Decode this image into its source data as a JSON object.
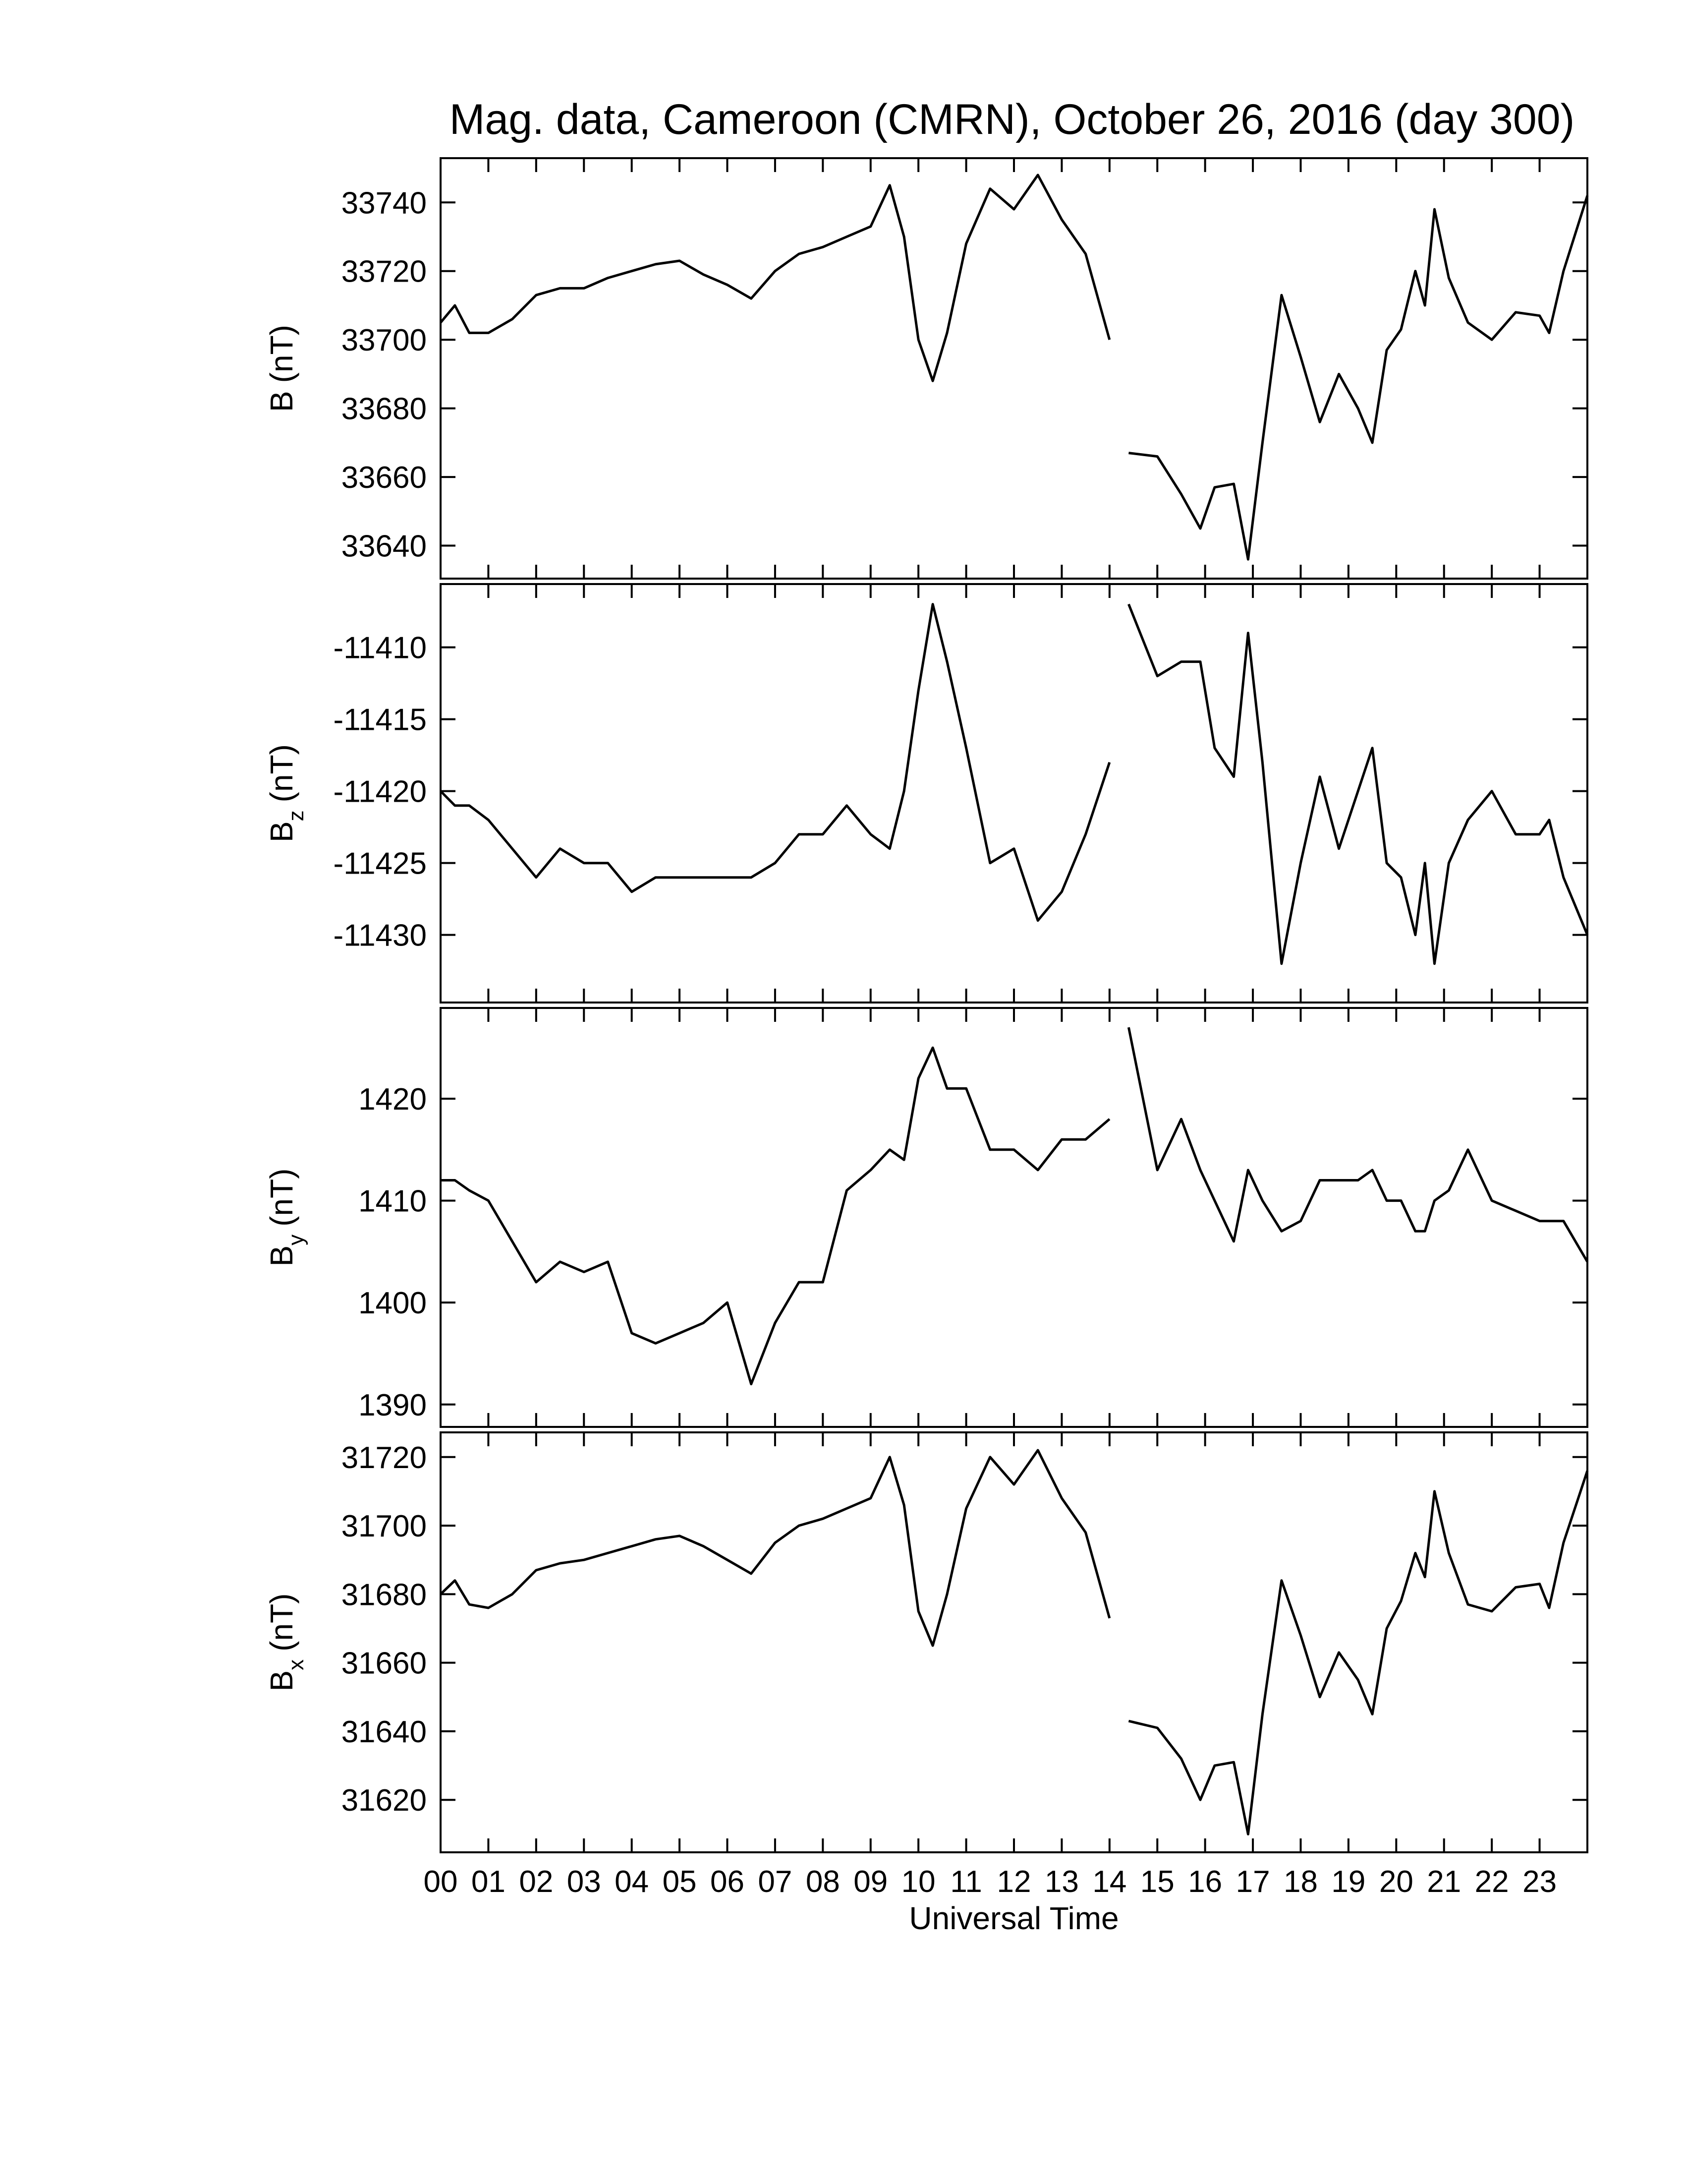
{
  "chart_data": [
    {
      "type": "line",
      "title": "Mag. data, Cameroon (CMRN), October 26, 2016 (day 300)",
      "ylabel": {
        "base": "B",
        "unit": "(nT)"
      },
      "color": "#000000",
      "xlim": [
        0,
        24
      ],
      "ylim": [
        33630.4,
        33752.9
      ],
      "yticks": [
        33640,
        33660,
        33680,
        33700,
        33720,
        33740
      ],
      "x": [
        0,
        0.3,
        0.6,
        1,
        1.5,
        2,
        2.5,
        3,
        3.5,
        4,
        4.5,
        5,
        5.5,
        6,
        6.5,
        7,
        7.5,
        8,
        8.5,
        9,
        9.4,
        9.7,
        10,
        10.3,
        10.6,
        11,
        11.5,
        12,
        12.5,
        13,
        13.5,
        14,
        14.2,
        14.4,
        15,
        15.5,
        15.9,
        16.2,
        16.6,
        16.9,
        17.2,
        17.6,
        18,
        18.4,
        18.8,
        19.2,
        19.5,
        19.8,
        20.1,
        20.4,
        20.6,
        20.8,
        21.1,
        21.5,
        22,
        22.5,
        23,
        23.2,
        23.5,
        24
      ],
      "values": [
        33705,
        33710,
        33702,
        33702,
        33706,
        33713,
        33715,
        33715,
        33718,
        33720,
        33722,
        33723,
        33719,
        33716,
        33712,
        33720,
        33725,
        33727,
        33730,
        33733,
        33745,
        33730,
        33700,
        33688,
        33702,
        33728,
        33744,
        33738,
        33748,
        33735,
        33725,
        33700,
        null,
        33667,
        33666,
        33655,
        33645,
        33657,
        33658,
        33636,
        33670,
        33713,
        33695,
        33676,
        33690,
        33680,
        33670,
        33697,
        33703,
        33720,
        33710,
        33738,
        33718,
        33705,
        33700,
        33708,
        33707,
        33702,
        33720,
        33742
      ]
    },
    {
      "type": "line",
      "ylabel": {
        "base": "B",
        "sub": "z",
        "unit": "(nT)"
      },
      "color": "#000000",
      "xlim": [
        0,
        24
      ],
      "ylim": [
        -11434.7,
        -11405.6
      ],
      "yticks": [
        -11430,
        -11425,
        -11420,
        -11415,
        -11410
      ],
      "x": [
        0,
        0.3,
        0.6,
        1,
        1.5,
        2,
        2.5,
        3,
        3.5,
        4,
        4.5,
        5,
        5.5,
        6,
        6.5,
        7,
        7.5,
        8,
        8.5,
        9,
        9.4,
        9.7,
        10,
        10.3,
        10.6,
        11,
        11.5,
        12,
        12.5,
        13,
        13.5,
        14,
        14.2,
        14.4,
        15,
        15.5,
        15.9,
        16.2,
        16.6,
        16.9,
        17.2,
        17.6,
        18,
        18.4,
        18.8,
        19.2,
        19.5,
        19.8,
        20.1,
        20.4,
        20.6,
        20.8,
        21.1,
        21.5,
        22,
        22.5,
        23,
        23.2,
        23.5,
        24
      ],
      "values": [
        -11420,
        -11421,
        -11421,
        -11422,
        -11424,
        -11426,
        -11424,
        -11425,
        -11425,
        -11427,
        -11426,
        -11426,
        -11426,
        -11426,
        -11426,
        -11425,
        -11423,
        -11423,
        -11421,
        -11423,
        -11424,
        -11420,
        -11413,
        -11407,
        -11411,
        -11417,
        -11425,
        -11424,
        -11429,
        -11427,
        -11423,
        -11418,
        null,
        -11407,
        -11412,
        -11411,
        -11411,
        -11417,
        -11419,
        -11409,
        -11418,
        -11432,
        -11425,
        -11419,
        -11424,
        -11420,
        -11417,
        -11425,
        -11426,
        -11430,
        -11425,
        -11432,
        -11425,
        -11422,
        -11420,
        -11423,
        -11423,
        -11422,
        -11426,
        -11430
      ]
    },
    {
      "type": "line",
      "ylabel": {
        "base": "B",
        "sub": "y",
        "unit": "(nT)"
      },
      "color": "#000000",
      "xlim": [
        0,
        24
      ],
      "ylim": [
        1387.8,
        1428.9
      ],
      "yticks": [
        1390,
        1400,
        1410,
        1420
      ],
      "x": [
        0,
        0.3,
        0.6,
        1,
        1.5,
        2,
        2.5,
        3,
        3.5,
        4,
        4.5,
        5,
        5.5,
        6,
        6.5,
        7,
        7.5,
        8,
        8.5,
        9,
        9.4,
        9.7,
        10,
        10.3,
        10.6,
        11,
        11.5,
        12,
        12.5,
        13,
        13.5,
        14,
        14.2,
        14.4,
        15,
        15.5,
        15.9,
        16.2,
        16.6,
        16.9,
        17.2,
        17.6,
        18,
        18.4,
        18.8,
        19.2,
        19.5,
        19.8,
        20.1,
        20.4,
        20.6,
        20.8,
        21.1,
        21.5,
        22,
        22.5,
        23,
        23.2,
        23.5,
        24
      ],
      "values": [
        1412,
        1412,
        1411,
        1410,
        1406,
        1402,
        1404,
        1403,
        1404,
        1397,
        1396,
        1397,
        1398,
        1400,
        1392,
        1398,
        1402,
        1402,
        1411,
        1413,
        1415,
        1414,
        1422,
        1425,
        1421,
        1421,
        1415,
        1415,
        1413,
        1416,
        1416,
        1418,
        null,
        1427,
        1413,
        1418,
        1413,
        1410,
        1406,
        1413,
        1410,
        1407,
        1408,
        1412,
        1412,
        1412,
        1413,
        1410,
        1410,
        1407,
        1407,
        1410,
        1411,
        1415,
        1410,
        1409,
        1408,
        1408,
        1408,
        1404
      ]
    },
    {
      "type": "line",
      "ylabel": {
        "base": "B",
        "sub": "x",
        "unit": "(nT)"
      },
      "color": "#000000",
      "xlabel": "Universal Time",
      "xlim": [
        0,
        24
      ],
      "ylim": [
        31604.7,
        31727.2
      ],
      "yticks": [
        31620,
        31640,
        31660,
        31680,
        31700,
        31720
      ],
      "xticks": [
        {
          "value": 0,
          "label": "00"
        },
        {
          "value": 1,
          "label": "01"
        },
        {
          "value": 2,
          "label": "02"
        },
        {
          "value": 3,
          "label": "03"
        },
        {
          "value": 4,
          "label": "04"
        },
        {
          "value": 5,
          "label": "05"
        },
        {
          "value": 6,
          "label": "06"
        },
        {
          "value": 7,
          "label": "07"
        },
        {
          "value": 8,
          "label": "08"
        },
        {
          "value": 9,
          "label": "09"
        },
        10,
        11,
        12,
        13,
        14,
        15,
        16,
        17,
        18,
        19,
        20,
        21,
        22,
        23
      ],
      "x": [
        0,
        0.3,
        0.6,
        1,
        1.5,
        2,
        2.5,
        3,
        3.5,
        4,
        4.5,
        5,
        5.5,
        6,
        6.5,
        7,
        7.5,
        8,
        8.5,
        9,
        9.4,
        9.7,
        10,
        10.3,
        10.6,
        11,
        11.5,
        12,
        12.5,
        13,
        13.5,
        14,
        14.2,
        14.4,
        15,
        15.5,
        15.9,
        16.2,
        16.6,
        16.9,
        17.2,
        17.6,
        18,
        18.4,
        18.8,
        19.2,
        19.5,
        19.8,
        20.1,
        20.4,
        20.6,
        20.8,
        21.1,
        21.5,
        22,
        22.5,
        23,
        23.2,
        23.5,
        24
      ],
      "values": [
        31680,
        31684,
        31677,
        31676,
        31680,
        31687,
        31689,
        31690,
        31692,
        31694,
        31696,
        31697,
        31694,
        31690,
        31686,
        31695,
        31700,
        31702,
        31705,
        31708,
        31720,
        31706,
        31675,
        31665,
        31680,
        31705,
        31720,
        31712,
        31722,
        31708,
        31698,
        31673,
        null,
        31643,
        31641,
        31632,
        31620,
        31630,
        31631,
        31610,
        31645,
        31684,
        31668,
        31650,
        31663,
        31655,
        31645,
        31670,
        31678,
        31692,
        31685,
        31710,
        31692,
        31677,
        31675,
        31682,
        31683,
        31676,
        31695,
        31716
      ]
    }
  ]
}
